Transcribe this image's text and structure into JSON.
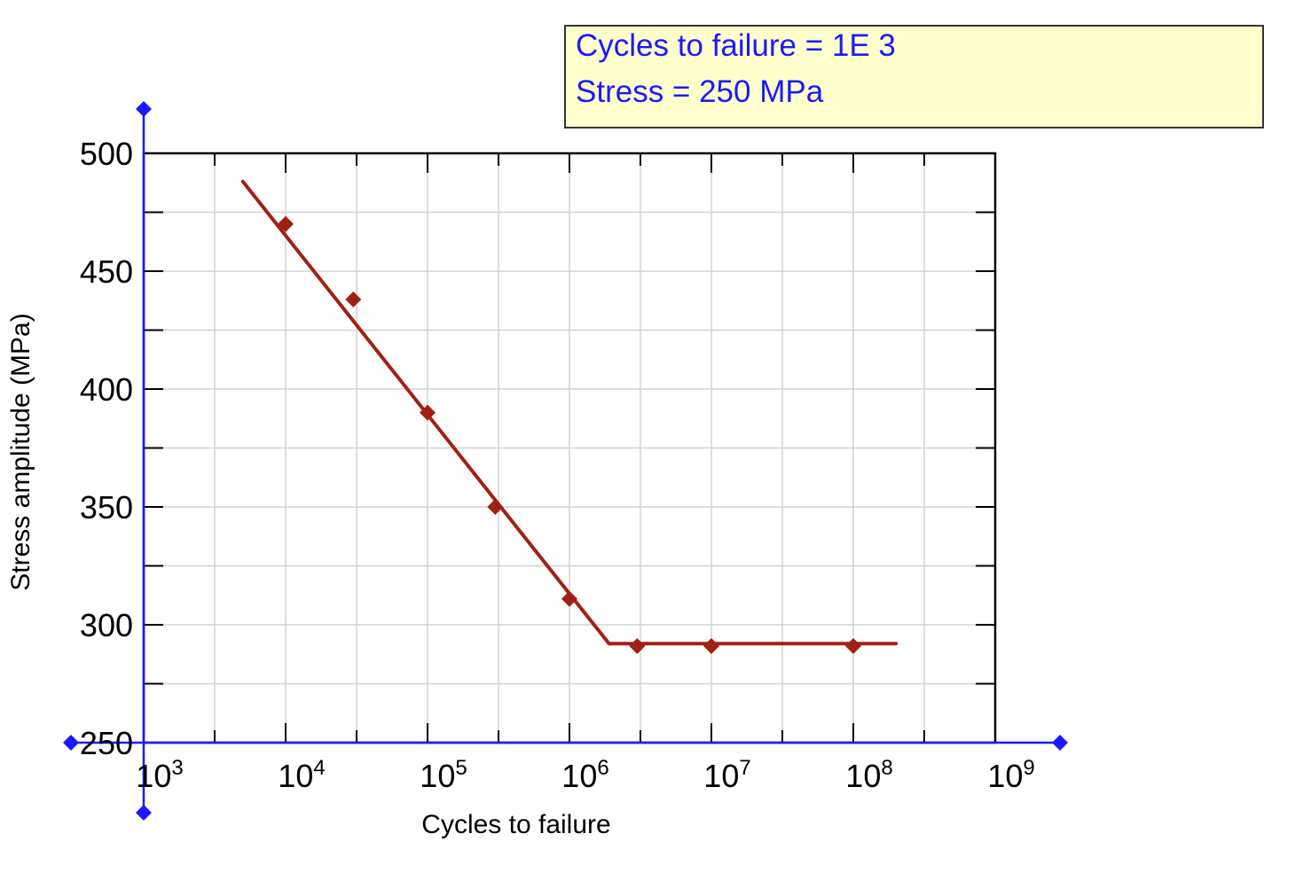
{
  "readout": {
    "line1": "Cycles to failure = 1E 3",
    "line2": "Stress = 250 MPa"
  },
  "colors": {
    "series": "#a12015",
    "cursor_axes": "#1a1aff",
    "readout_text": "#1a1aff",
    "readout_bg": "#ffffcc",
    "grid": "#d3d3d3"
  },
  "chart_data": {
    "type": "line",
    "xscale": "log",
    "xlim": [
      1000,
      1000000000
    ],
    "ylim": [
      250,
      500
    ],
    "xlabel": "Cycles to failure",
    "ylabel": "Stress amplitude (MPa)",
    "grid": true,
    "x_ticks": [
      {
        "value": 1000,
        "base": "10",
        "exp": "3"
      },
      {
        "value": 10000,
        "base": "10",
        "exp": "4"
      },
      {
        "value": 100000,
        "base": "10",
        "exp": "5"
      },
      {
        "value": 1000000,
        "base": "10",
        "exp": "6"
      },
      {
        "value": 10000000,
        "base": "10",
        "exp": "7"
      },
      {
        "value": 100000000,
        "base": "10",
        "exp": "8"
      },
      {
        "value": 1000000000,
        "base": "10",
        "exp": "9"
      }
    ],
    "y_ticks": [
      "250",
      "300",
      "350",
      "400",
      "450",
      "500"
    ],
    "series": [
      {
        "kind": "fit_line",
        "x": [
          5000,
          1900000,
          200000000
        ],
        "y": [
          488,
          292,
          292
        ]
      },
      {
        "kind": "data_points",
        "x": [
          10000,
          30000,
          100000,
          300000,
          1000000,
          3000000,
          10000000,
          100000000
        ],
        "y": [
          470,
          438,
          390,
          350,
          311,
          291,
          291,
          291
        ]
      }
    ]
  }
}
